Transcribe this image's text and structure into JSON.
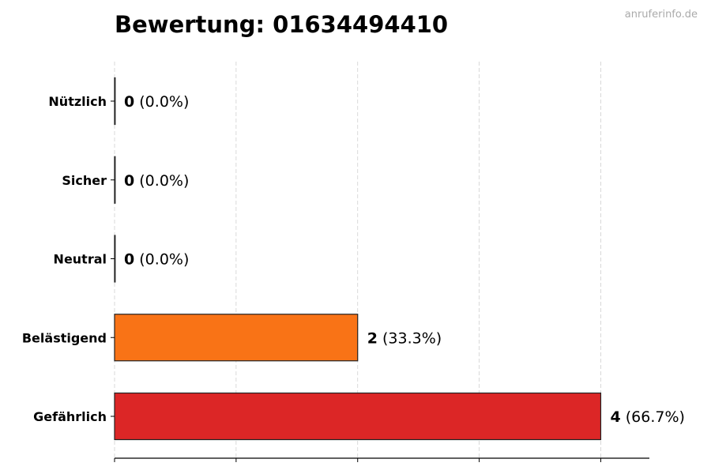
{
  "chart_data": {
    "type": "bar",
    "orientation": "horizontal",
    "title": "Bewertung: 01634494410",
    "watermark": "anruferinfo.de",
    "categories": [
      "Nützlich",
      "Sicher",
      "Neutral",
      "Belästigend",
      "Gefährlich"
    ],
    "values": [
      0,
      0,
      0,
      2,
      4
    ],
    "labels": [
      "(0.0%)",
      "(0.0%)",
      "(0.0%)",
      "(33.3%)",
      "(66.7%)"
    ],
    "colors": [
      "#22c55e",
      "#3b82f6",
      "#9ca3af",
      "#f97316",
      "#dc2626"
    ],
    "xlim": [
      0,
      4.4
    ],
    "xticks": [
      0,
      1,
      2,
      3,
      4
    ],
    "xtick_labels_visible": false,
    "grid": "x-dashed",
    "xlabel": "",
    "ylabel": ""
  }
}
